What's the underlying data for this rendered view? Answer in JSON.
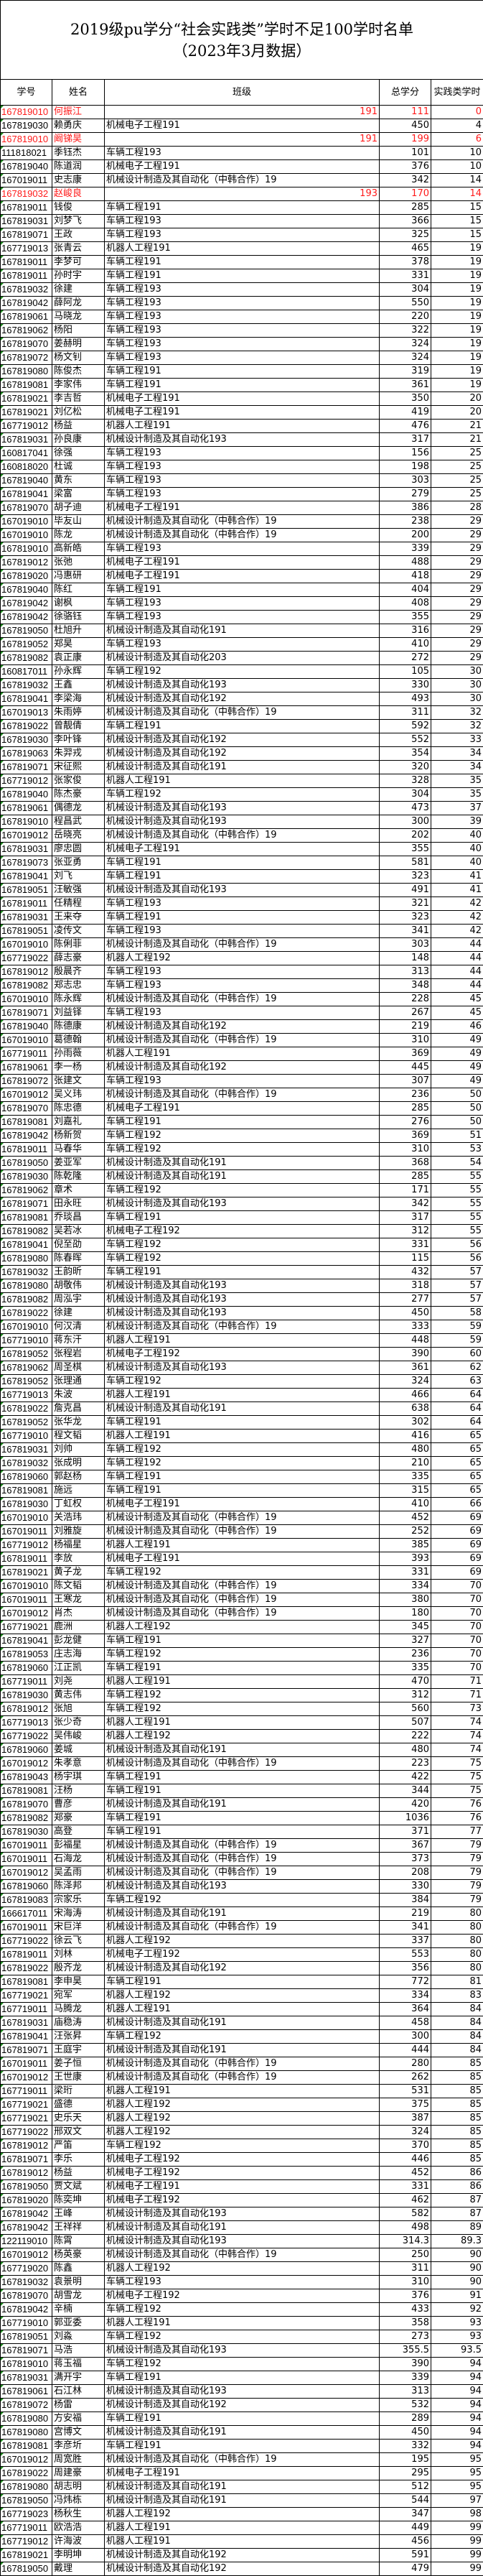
{
  "title_line1": "2019级pu学分“社会实践类”学时不足100学时名单",
  "title_line2": "（2023年3月数据）",
  "columns": [
    "学号",
    "姓名",
    "班级",
    "总学分",
    "实践类学时"
  ],
  "highlight_color": "#ff1a1a",
  "rows": [
    [
      "167819010",
      "何振江",
      "191",
      "111",
      "0",
      1
    ],
    [
      "167819030",
      "赖勇庆",
      "机械电子工程191",
      "450",
      "4",
      0
    ],
    [
      "167819010",
      "阚锑昊",
      "191",
      "199",
      "6",
      1
    ],
    [
      "111818021",
      "季钰杰",
      "车辆工程193",
      "101",
      "10",
      0
    ],
    [
      "167819040",
      "陈道润",
      "机械电子工程191",
      "376",
      "10",
      0
    ],
    [
      "167019011",
      "史志康",
      "机械设计制造及其自动化（中韩合作）19",
      "342",
      "14",
      0
    ],
    [
      "167819032",
      "赵峻良",
      "193",
      "170",
      "14",
      1
    ],
    [
      "167819011",
      "钱俊",
      "车辆工程191",
      "285",
      "15",
      0
    ],
    [
      "167819031",
      "刘梦飞",
      "车辆工程193",
      "366",
      "15",
      0
    ],
    [
      "167819071",
      "王政",
      "车辆工程193",
      "325",
      "15",
      0
    ],
    [
      "167719013",
      "张青云",
      "机器人工程191",
      "465",
      "19",
      0
    ],
    [
      "167819011",
      "李梦可",
      "车辆工程191",
      "378",
      "19",
      0
    ],
    [
      "167819011",
      "孙时宇",
      "车辆工程191",
      "331",
      "19",
      0
    ],
    [
      "167819032",
      "徐建",
      "车辆工程193",
      "304",
      "19",
      0
    ],
    [
      "167819042",
      "薛阿龙",
      "车辆工程193",
      "550",
      "19",
      0
    ],
    [
      "167819061",
      "马晓龙",
      "车辆工程193",
      "220",
      "19",
      0
    ],
    [
      "167819062",
      "杨阳",
      "车辆工程193",
      "322",
      "19",
      0
    ],
    [
      "167819070",
      "姜赫明",
      "车辆工程193",
      "324",
      "19",
      0
    ],
    [
      "167819072",
      "杨文钊",
      "车辆工程193",
      "324",
      "19",
      0
    ],
    [
      "167819080",
      "陈俊杰",
      "车辆工程191",
      "319",
      "19",
      0
    ],
    [
      "167819081",
      "李家伟",
      "车辆工程191",
      "361",
      "19",
      0
    ],
    [
      "167819021",
      "李吉哲",
      "机械电子工程191",
      "350",
      "20",
      0
    ],
    [
      "167819021",
      "刘亿松",
      "机械电子工程191",
      "419",
      "20",
      0
    ],
    [
      "167719012",
      "杨益",
      "机器人工程191",
      "476",
      "21",
      0
    ],
    [
      "167819031",
      "孙良康",
      "机械设计制造及其自动化193",
      "317",
      "21",
      0
    ],
    [
      "160817041",
      "徐强",
      "车辆工程193",
      "156",
      "25",
      0
    ],
    [
      "160818020",
      "杜诚",
      "车辆工程193",
      "198",
      "25",
      0
    ],
    [
      "167819040",
      "黄东",
      "车辆工程193",
      "303",
      "25",
      0
    ],
    [
      "167819041",
      "梁富",
      "车辆工程193",
      "279",
      "25",
      0
    ],
    [
      "167819070",
      "胡子迪",
      "机械电子工程191",
      "386",
      "28",
      0
    ],
    [
      "167019010",
      "毕友山",
      "机械设计制造及其自动化（中韩合作）19",
      "238",
      "29",
      0
    ],
    [
      "167019010",
      "陈龙",
      "机械设计制造及其自动化（中韩合作）19",
      "200",
      "29",
      0
    ],
    [
      "167819010",
      "高新皓",
      "车辆工程193",
      "339",
      "29",
      0
    ],
    [
      "167819012",
      "张弛",
      "机械电子工程191",
      "488",
      "29",
      0
    ],
    [
      "167819020",
      "冯惠研",
      "机械电子工程191",
      "418",
      "29",
      0
    ],
    [
      "167819040",
      "陈红",
      "车辆工程191",
      "404",
      "29",
      0
    ],
    [
      "167819042",
      "谢枫",
      "车辆工程193",
      "408",
      "29",
      0
    ],
    [
      "167819042",
      "徐骆钰",
      "车辆工程193",
      "355",
      "29",
      0
    ],
    [
      "167819050",
      "杜旭升",
      "机械设计制造及其自动化191",
      "316",
      "29",
      0
    ],
    [
      "167819052",
      "郑昊",
      "车辆工程193",
      "410",
      "29",
      0
    ],
    [
      "167819082",
      "袁正康",
      "机械设计制造及其自动化203",
      "272",
      "29",
      0
    ],
    [
      "160817011",
      "孙永辉",
      "车辆工程192",
      "105",
      "30",
      0
    ],
    [
      "167819032",
      "王鑫",
      "机械设计制造及其自动化193",
      "330",
      "30",
      0
    ],
    [
      "167819041",
      "李梁海",
      "机械设计制造及其自动化192",
      "493",
      "30",
      0
    ],
    [
      "167019013",
      "朱雨婷",
      "机械设计制造及其自动化（中韩合作）19",
      "311",
      "32",
      0
    ],
    [
      "167819022",
      "曾靓倩",
      "车辆工程191",
      "592",
      "32",
      0
    ],
    [
      "167819030",
      "李叶锋",
      "机械设计制造及其自动化192",
      "552",
      "33",
      0
    ],
    [
      "167819063",
      "朱羿戎",
      "机械设计制造及其自动化192",
      "354",
      "34",
      0
    ],
    [
      "167819071",
      "宋征熙",
      "机械设计制造及其自动化191",
      "320",
      "34",
      0
    ],
    [
      "167719012",
      "张家俊",
      "机器人工程191",
      "328",
      "35",
      0
    ],
    [
      "167819040",
      "陈杰豪",
      "车辆工程192",
      "304",
      "35",
      0
    ],
    [
      "167819061",
      "偶德龙",
      "机械设计制造及其自动化193",
      "473",
      "37",
      0
    ],
    [
      "167819010",
      "程昌武",
      "机械设计制造及其自动化193",
      "300",
      "39",
      0
    ],
    [
      "167019012",
      "岳晓亮",
      "机械设计制造及其自动化（中韩合作）19",
      "202",
      "40",
      0
    ],
    [
      "167819031",
      "廖忠圆",
      "机械电子工程191",
      "355",
      "40",
      0
    ],
    [
      "167819073",
      "张亚勇",
      "车辆工程191",
      "581",
      "40",
      0
    ],
    [
      "167819041",
      "刘飞",
      "车辆工程191",
      "323",
      "41",
      0
    ],
    [
      "167819051",
      "汪敏强",
      "机械设计制造及其自动化193",
      "491",
      "41",
      0
    ],
    [
      "167819011",
      "任精程",
      "车辆工程193",
      "321",
      "42",
      0
    ],
    [
      "167819031",
      "王来夺",
      "车辆工程191",
      "323",
      "42",
      0
    ],
    [
      "167819051",
      "凌传文",
      "车辆工程193",
      "341",
      "42",
      0
    ],
    [
      "167019010",
      "陈俐菲",
      "机械设计制造及其自动化（中韩合作）19",
      "303",
      "44",
      0
    ],
    [
      "167719022",
      "薛志豪",
      "机器人工程192",
      "148",
      "44",
      0
    ],
    [
      "167819012",
      "殷晨齐",
      "车辆工程193",
      "313",
      "44",
      0
    ],
    [
      "167819082",
      "郑志忠",
      "车辆工程193",
      "348",
      "44",
      0
    ],
    [
      "167019010",
      "陈永辉",
      "机械设计制造及其自动化（中韩合作）19",
      "228",
      "45",
      0
    ],
    [
      "167819071",
      "刘益铎",
      "车辆工程193",
      "267",
      "45",
      0
    ],
    [
      "167819040",
      "陈德康",
      "机械设计制造及其自动化192",
      "219",
      "46",
      0
    ],
    [
      "167019010",
      "葛德翰",
      "机械设计制造及其自动化（中韩合作）19",
      "310",
      "49",
      0
    ],
    [
      "167719011",
      "孙雨薇",
      "机器人工程191",
      "369",
      "49",
      0
    ],
    [
      "167819061",
      "李一杨",
      "机械设计制造及其自动化192",
      "445",
      "49",
      0
    ],
    [
      "167819072",
      "张建文",
      "车辆工程193",
      "307",
      "49",
      0
    ],
    [
      "167019012",
      "吴义玮",
      "机械设计制造及其自动化（中韩合作）19",
      "236",
      "50",
      0
    ],
    [
      "167819070",
      "陈忠德",
      "机械电子工程191",
      "285",
      "50",
      0
    ],
    [
      "167819081",
      "刘嘉礼",
      "车辆工程191",
      "276",
      "50",
      0
    ],
    [
      "167819042",
      "杨新贺",
      "车辆工程192",
      "369",
      "51",
      0
    ],
    [
      "167819011",
      "马春华",
      "车辆工程192",
      "310",
      "53",
      0
    ],
    [
      "167819050",
      "姜亚军",
      "机械设计制造及其自动化191",
      "368",
      "54",
      0
    ],
    [
      "167819030",
      "陈乾隆",
      "机械设计制造及其自动化191",
      "285",
      "55",
      0
    ],
    [
      "167819062",
      "章术",
      "车辆工程192",
      "171",
      "55",
      0
    ],
    [
      "167819071",
      "田永旺",
      "机械设计制造及其自动化193",
      "342",
      "55",
      0
    ],
    [
      "167819081",
      "乔琰昌",
      "车辆工程191",
      "317",
      "55",
      0
    ],
    [
      "167819082",
      "吴若冰",
      "机械电子工程192",
      "312",
      "55",
      0
    ],
    [
      "167819041",
      "倪至劭",
      "车辆工程192",
      "331",
      "56",
      0
    ],
    [
      "167819080",
      "陈春晖",
      "车辆工程192",
      "115",
      "56",
      0
    ],
    [
      "167819032",
      "王韵昕",
      "车辆工程191",
      "432",
      "57",
      0
    ],
    [
      "167819080",
      "胡敬伟",
      "机械设计制造及其自动化193",
      "318",
      "57",
      0
    ],
    [
      "167819082",
      "周泓宇",
      "机械设计制造及其自动化193",
      "277",
      "57",
      0
    ],
    [
      "167819022",
      "徐建",
      "机械设计制造及其自动化193",
      "450",
      "58",
      0
    ],
    [
      "167019010",
      "何汉清",
      "机械设计制造及其自动化（中韩合作）19",
      "333",
      "59",
      0
    ],
    [
      "167719010",
      "蒋东汗",
      "机器人工程191",
      "448",
      "59",
      0
    ],
    [
      "167819052",
      "张程岩",
      "机械电子工程192",
      "390",
      "60",
      0
    ],
    [
      "167819062",
      "周圣棋",
      "机械设计制造及其自动化193",
      "361",
      "62",
      0
    ],
    [
      "167819052",
      "张理通",
      "车辆工程192",
      "324",
      "63",
      0
    ],
    [
      "167719013",
      "朱波",
      "机器人工程191",
      "466",
      "64",
      0
    ],
    [
      "167819022",
      "詹克昌",
      "机械设计制造及其自动化191",
      "638",
      "64",
      0
    ],
    [
      "167819052",
      "张华龙",
      "车辆工程191",
      "302",
      "64",
      0
    ],
    [
      "167719010",
      "程文韬",
      "机器人工程191",
      "416",
      "65",
      0
    ],
    [
      "167819031",
      "刘帅",
      "车辆工程192",
      "480",
      "65",
      0
    ],
    [
      "167819032",
      "张成明",
      "车辆工程192",
      "210",
      "65",
      0
    ],
    [
      "167819060",
      "郭赵杨",
      "车辆工程191",
      "335",
      "65",
      0
    ],
    [
      "167819081",
      "施远",
      "车辆工程191",
      "315",
      "65",
      0
    ],
    [
      "167819030",
      "丁虹权",
      "机械电子工程191",
      "410",
      "66",
      0
    ],
    [
      "167019010",
      "关浩玮",
      "机械设计制造及其自动化（中韩合作）19",
      "452",
      "69",
      0
    ],
    [
      "167019011",
      "刘雅旋",
      "机械设计制造及其自动化（中韩合作）19",
      "252",
      "69",
      0
    ],
    [
      "167719012",
      "杨福星",
      "机器人工程191",
      "385",
      "69",
      0
    ],
    [
      "167819011",
      "李放",
      "机械电子工程191",
      "393",
      "69",
      0
    ],
    [
      "167819021",
      "黄子龙",
      "车辆工程192",
      "331",
      "69",
      0
    ],
    [
      "167019010",
      "陈文韬",
      "机械设计制造及其自动化（中韩合作）19",
      "334",
      "70",
      0
    ],
    [
      "167019011",
      "王寒龙",
      "机械设计制造及其自动化（中韩合作）19",
      "380",
      "70",
      0
    ],
    [
      "167019012",
      "肖杰",
      "机械设计制造及其自动化（中韩合作）19",
      "180",
      "70",
      0
    ],
    [
      "167719021",
      "鹿洲",
      "机器人工程192",
      "345",
      "70",
      0
    ],
    [
      "167819041",
      "彭龙健",
      "车辆工程191",
      "327",
      "70",
      0
    ],
    [
      "167819053",
      "庄志海",
      "车辆工程192",
      "236",
      "70",
      0
    ],
    [
      "167819060",
      "江正凯",
      "车辆工程191",
      "335",
      "70",
      0
    ],
    [
      "167719011",
      "刘尧",
      "机器人工程191",
      "470",
      "71",
      0
    ],
    [
      "167819030",
      "黄志伟",
      "车辆工程192",
      "312",
      "71",
      0
    ],
    [
      "167819012",
      "张旭",
      "车辆工程192",
      "560",
      "73",
      0
    ],
    [
      "167719013",
      "张少奇",
      "机器人工程191",
      "507",
      "74",
      0
    ],
    [
      "167719022",
      "吴伟峻",
      "机器人工程192",
      "222",
      "74",
      0
    ],
    [
      "167819060",
      "姜城",
      "机械设计制造及其自动化191",
      "480",
      "74",
      0
    ],
    [
      "167019012",
      "朱孝意",
      "机械设计制造及其自动化（中韩合作）19",
      "223",
      "75",
      0
    ],
    [
      "167819043",
      "杨宇琪",
      "车辆工程191",
      "422",
      "75",
      0
    ],
    [
      "167819081",
      "汪杨",
      "车辆工程191",
      "344",
      "75",
      0
    ],
    [
      "167819070",
      "曹彦",
      "机械设计制造及其自动化191",
      "420",
      "76",
      0
    ],
    [
      "167819082",
      "郑豪",
      "车辆工程191",
      "1036",
      "76",
      0
    ],
    [
      "167819030",
      "高登",
      "车辆工程191",
      "371",
      "77",
      0
    ],
    [
      "167019011",
      "彭福星",
      "机械设计制造及其自动化（中韩合作）19",
      "367",
      "79",
      0
    ],
    [
      "167019011",
      "石海龙",
      "机械设计制造及其自动化（中韩合作）19",
      "373",
      "79",
      0
    ],
    [
      "167019012",
      "吴孟雨",
      "机械设计制造及其自动化（中韩合作）19",
      "208",
      "79",
      0
    ],
    [
      "167819060",
      "陈泽邦",
      "机械设计制造及其自动化193",
      "330",
      "79",
      0
    ],
    [
      "167819083",
      "宗家乐",
      "车辆工程192",
      "384",
      "79",
      0
    ],
    [
      "166617011",
      "宋海涛",
      "机械设计制造及其自动化191",
      "219",
      "80",
      0
    ],
    [
      "167019011",
      "宋巨洋",
      "机械设计制造及其自动化（中韩合作）19",
      "341",
      "80",
      0
    ],
    [
      "167719022",
      "徐云飞",
      "机器人工程192",
      "337",
      "80",
      0
    ],
    [
      "167819011",
      "刘林",
      "机械电子工程192",
      "553",
      "80",
      0
    ],
    [
      "167819022",
      "殷齐龙",
      "机械设计制造及其自动化192",
      "356",
      "80",
      0
    ],
    [
      "167819081",
      "李申昊",
      "车辆工程191",
      "772",
      "81",
      0
    ],
    [
      "167719021",
      "宛军",
      "机器人工程192",
      "334",
      "83",
      0
    ],
    [
      "167719011",
      "马腾龙",
      "机器人工程191",
      "364",
      "84",
      0
    ],
    [
      "167819031",
      "庙稳涛",
      "机械设计制造及其自动化191",
      "458",
      "84",
      0
    ],
    [
      "167819041",
      "汪张昇",
      "车辆工程192",
      "300",
      "84",
      0
    ],
    [
      "167819071",
      "王庭宇",
      "机械设计制造及其自动化191",
      "444",
      "84",
      0
    ],
    [
      "167019011",
      "姜子恒",
      "机械设计制造及其自动化（中韩合作）19",
      "280",
      "85",
      0
    ],
    [
      "167019012",
      "王世康",
      "机械设计制造及其自动化（中韩合作）19",
      "262",
      "85",
      0
    ],
    [
      "167719011",
      "梁珩",
      "机器人工程191",
      "531",
      "85",
      0
    ],
    [
      "167719021",
      "盛德",
      "机器人工程192",
      "375",
      "85",
      0
    ],
    [
      "167719021",
      "史乐天",
      "机器人工程192",
      "387",
      "85",
      0
    ],
    [
      "167719022",
      "邢双文",
      "机器人工程192",
      "324",
      "85",
      0
    ],
    [
      "167819012",
      "严笛",
      "车辆工程192",
      "370",
      "85",
      0
    ],
    [
      "167819071",
      "李乐",
      "机械电子工程192",
      "446",
      "85",
      0
    ],
    [
      "167819012",
      "杨益",
      "机械电子工程192",
      "452",
      "86",
      0
    ],
    [
      "167819050",
      "贾文斌",
      "机械电子工程191",
      "331",
      "86",
      0
    ],
    [
      "167819020",
      "陈奕坤",
      "机械电子工程192",
      "462",
      "87",
      0
    ],
    [
      "167819042",
      "王峰",
      "机械设计制造及其自动化193",
      "582",
      "87",
      0
    ],
    [
      "167819042",
      "王祥祥",
      "机械设计制造及其自动化191",
      "498",
      "89",
      0
    ],
    [
      "122119010",
      "陈霄",
      "机械设计制造及其自动化193",
      "314.3",
      "89.3",
      0
    ],
    [
      "167019012",
      "杨英豪",
      "机械设计制造及其自动化（中韩合作）19",
      "250",
      "90",
      0
    ],
    [
      "167719020",
      "陈鑫",
      "机器人工程192",
      "311",
      "90",
      0
    ],
    [
      "167819032",
      "袁景明",
      "车辆工程193",
      "310",
      "90",
      0
    ],
    [
      "167819070",
      "胡雪龙",
      "机械电子工程192",
      "376",
      "91",
      0
    ],
    [
      "167819042",
      "辛楠",
      "车辆工程192",
      "433",
      "92",
      0
    ],
    [
      "167719010",
      "郭亚委",
      "机器人工程191",
      "358",
      "93",
      0
    ],
    [
      "167819051",
      "刘淼",
      "车辆工程192",
      "273",
      "93",
      0
    ],
    [
      "167819071",
      "马浩",
      "机械设计制造及其自动化193",
      "355.5",
      "93.5",
      0
    ],
    [
      "167819010",
      "蒋玉福",
      "车辆工程192",
      "390",
      "94",
      0
    ],
    [
      "167819031",
      "满开宇",
      "车辆工程191",
      "339",
      "94",
      0
    ],
    [
      "167819061",
      "石江林",
      "机械设计制造及其自动化193",
      "313",
      "94",
      0
    ],
    [
      "167819072",
      "杨雷",
      "机械设计制造及其自动化192",
      "532",
      "94",
      0
    ],
    [
      "167819080",
      "方安福",
      "车辆工程191",
      "289",
      "94",
      0
    ],
    [
      "167819080",
      "宫博文",
      "机械设计制造及其自动化191",
      "450",
      "94",
      0
    ],
    [
      "167819081",
      "李彦圻",
      "车辆工程191",
      "332",
      "94",
      0
    ],
    [
      "167019012",
      "周宽胜",
      "机械设计制造及其自动化（中韩合作）19",
      "195",
      "95",
      0
    ],
    [
      "167819022",
      "周建豪",
      "机械电子工程191",
      "295",
      "95",
      0
    ],
    [
      "167819080",
      "胡志明",
      "机械设计制造及其自动化191",
      "512",
      "95",
      0
    ],
    [
      "167819050",
      "冯炜栋",
      "机械设计制造及其自动化191",
      "544",
      "97",
      0
    ],
    [
      "167719023",
      "杨秋生",
      "机器人工程192",
      "347",
      "98",
      0
    ],
    [
      "167719011",
      "欧浩浩",
      "机器人工程191",
      "449",
      "99",
      0
    ],
    [
      "167719012",
      "许海波",
      "机器人工程191",
      "456",
      "99",
      0
    ],
    [
      "167819021",
      "李明坤",
      "机械设计制造及其自动化192",
      "591",
      "99",
      0
    ],
    [
      "167819050",
      "戴理",
      "机械设计制造及其自动化192",
      "479",
      "99",
      0
    ]
  ]
}
